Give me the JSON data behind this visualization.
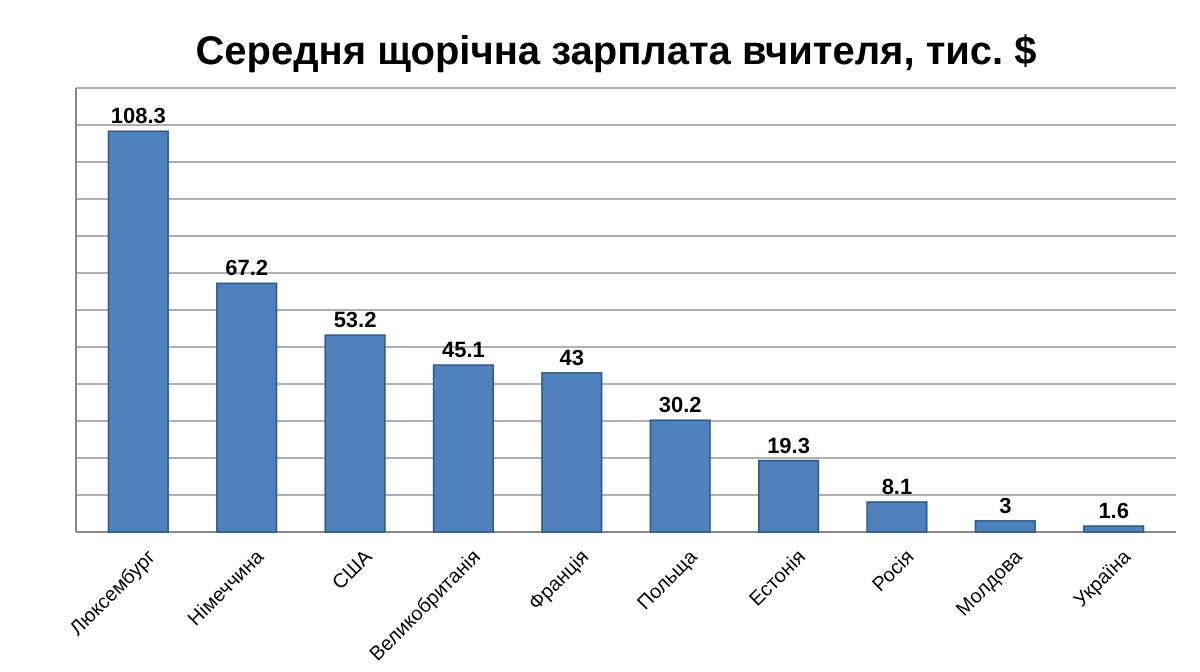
{
  "chart_data": {
    "type": "bar",
    "title": "Середня щорічна зарплата вчителя, тис. $",
    "categories": [
      "Люксембург",
      "Німеччина",
      "США",
      "Великобританія",
      "Франція",
      "Польща",
      "Естонія",
      "Росія",
      "Молдова",
      "Україна"
    ],
    "values": [
      108.3,
      67.2,
      53.2,
      45.1,
      43,
      30.2,
      19.3,
      8.1,
      3,
      1.6
    ],
    "color": "#4f81bd",
    "data_labels": true,
    "grid": "y",
    "tick_labels": "x",
    "ylim": [
      0,
      120
    ],
    "yticks": [
      {
        "value": 0,
        "label": null
      },
      {
        "value": 10,
        "label": null
      },
      {
        "value": 20,
        "label": null
      },
      {
        "value": 30,
        "label": null
      },
      {
        "value": 40,
        "label": null
      },
      {
        "value": 50,
        "label": null
      },
      {
        "value": 60,
        "label": null
      },
      {
        "value": 70,
        "label": null
      },
      {
        "value": 80,
        "label": null
      },
      {
        "value": 90,
        "label": null
      },
      {
        "value": 100,
        "label": null
      },
      {
        "value": 110,
        "label": null
      },
      {
        "value": 120,
        "label": null
      }
    ]
  }
}
